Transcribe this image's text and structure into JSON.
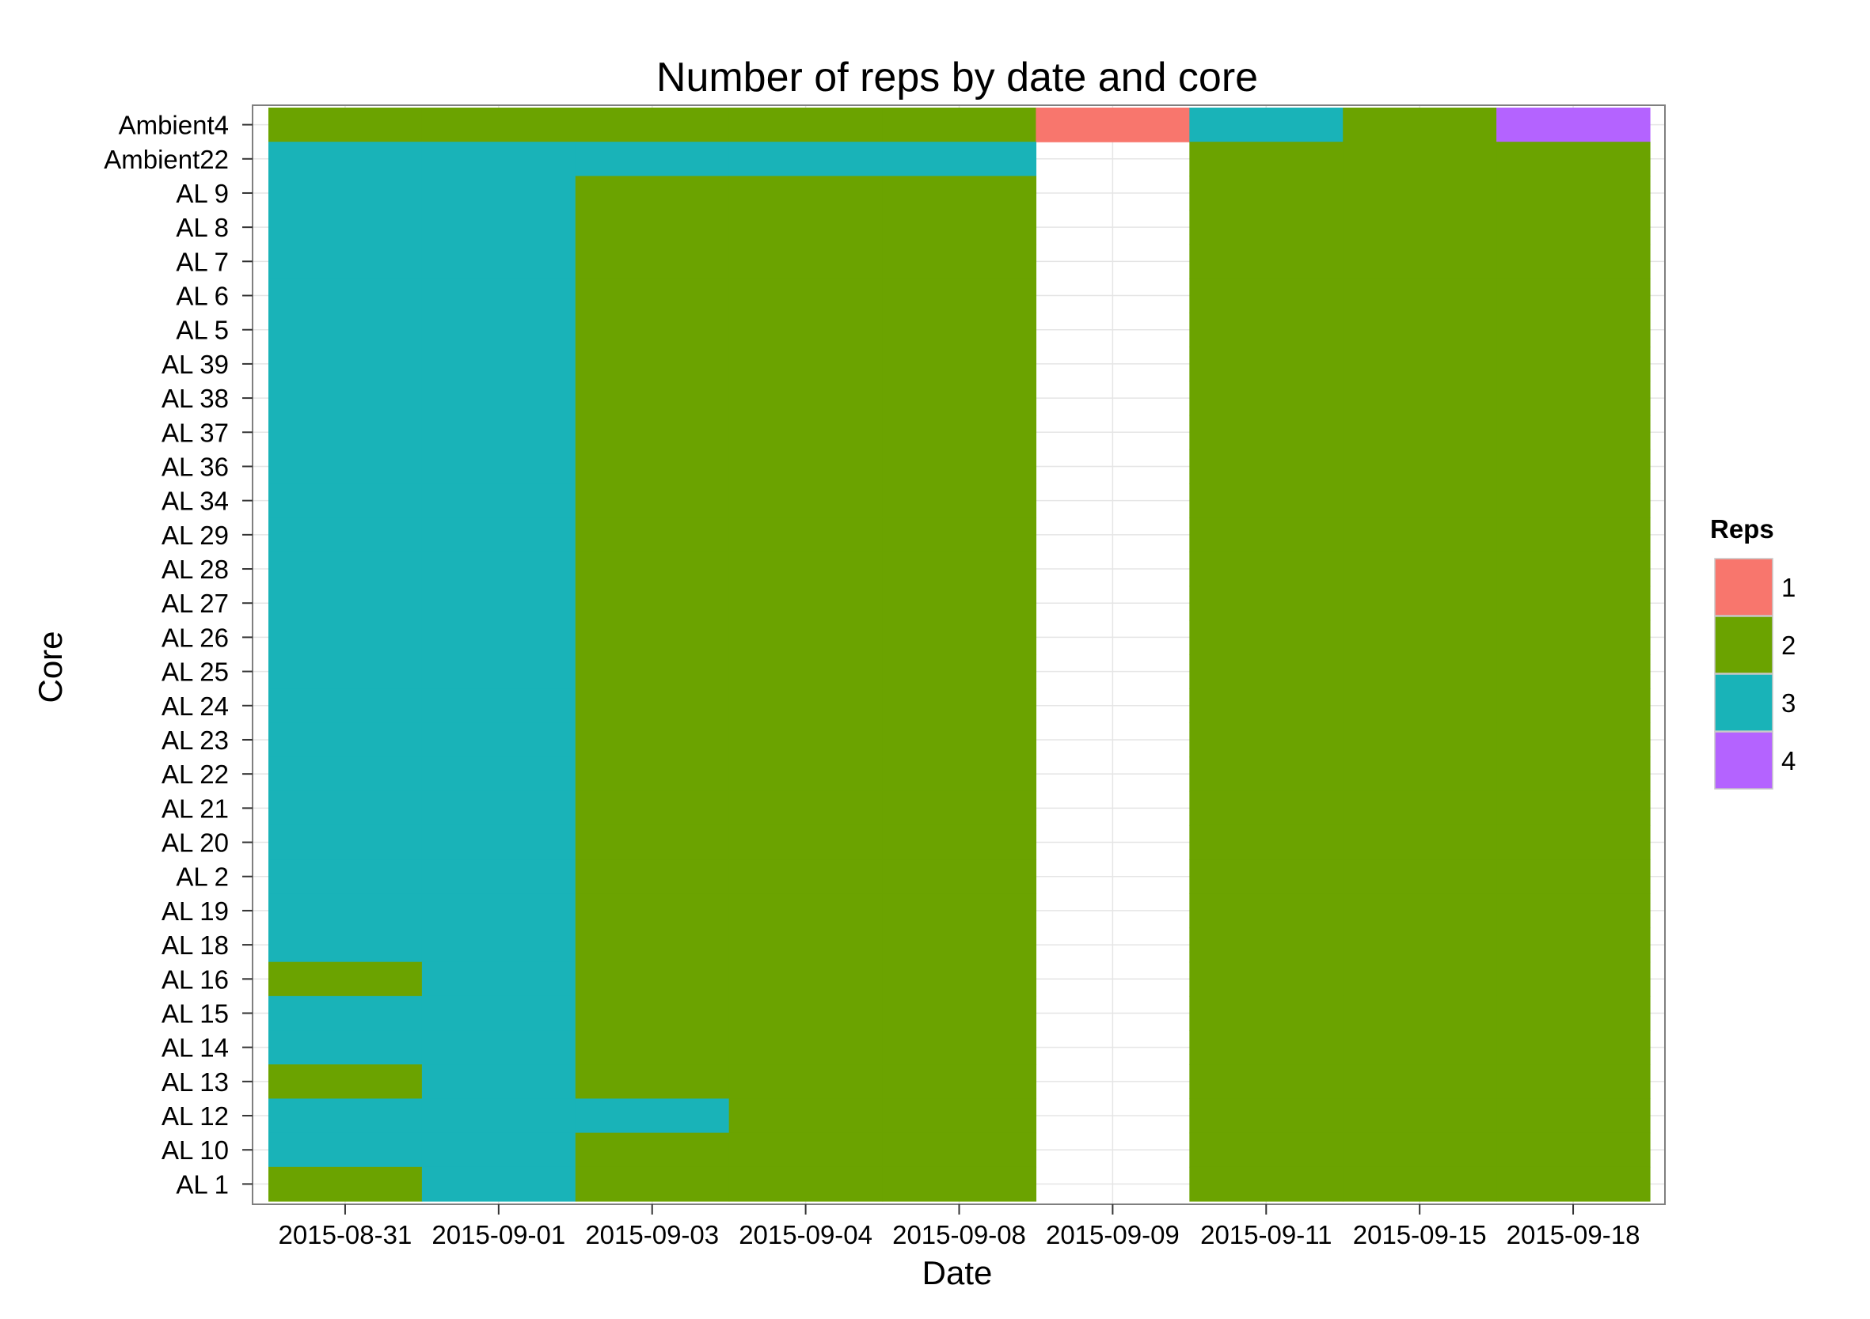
{
  "chart_data": {
    "type": "heatmap",
    "title": "Number of reps by date and core",
    "xlabel": "Date",
    "ylabel": "Core",
    "grid": true,
    "legend_placement": "right",
    "x": [
      "2015-08-31",
      "2015-09-01",
      "2015-09-03",
      "2015-09-04",
      "2015-09-08",
      "2015-09-09",
      "2015-09-11",
      "2015-09-15",
      "2015-09-18"
    ],
    "y": [
      "Ambient4",
      "Ambient22",
      "AL 9",
      "AL 8",
      "AL 7",
      "AL 6",
      "AL 5",
      "AL 39",
      "AL 38",
      "AL 37",
      "AL 36",
      "AL 34",
      "AL 29",
      "AL 28",
      "AL 27",
      "AL 26",
      "AL 25",
      "AL 24",
      "AL 23",
      "AL 22",
      "AL 21",
      "AL 20",
      "AL 2",
      "AL 19",
      "AL 18",
      "AL 16",
      "AL 15",
      "AL 14",
      "AL 13",
      "AL 12",
      "AL 10",
      "AL 1"
    ],
    "values": [
      [
        2,
        2,
        2,
        2,
        2,
        1,
        3,
        2,
        4
      ],
      [
        3,
        3,
        3,
        3,
        3,
        null,
        2,
        2,
        2
      ],
      [
        3,
        3,
        2,
        2,
        2,
        null,
        2,
        2,
        2
      ],
      [
        3,
        3,
        2,
        2,
        2,
        null,
        2,
        2,
        2
      ],
      [
        3,
        3,
        2,
        2,
        2,
        null,
        2,
        2,
        2
      ],
      [
        3,
        3,
        2,
        2,
        2,
        null,
        2,
        2,
        2
      ],
      [
        3,
        3,
        2,
        2,
        2,
        null,
        2,
        2,
        2
      ],
      [
        3,
        3,
        2,
        2,
        2,
        null,
        2,
        2,
        2
      ],
      [
        3,
        3,
        2,
        2,
        2,
        null,
        2,
        2,
        2
      ],
      [
        3,
        3,
        2,
        2,
        2,
        null,
        2,
        2,
        2
      ],
      [
        3,
        3,
        2,
        2,
        2,
        null,
        2,
        2,
        2
      ],
      [
        3,
        3,
        2,
        2,
        2,
        null,
        2,
        2,
        2
      ],
      [
        3,
        3,
        2,
        2,
        2,
        null,
        2,
        2,
        2
      ],
      [
        3,
        3,
        2,
        2,
        2,
        null,
        2,
        2,
        2
      ],
      [
        3,
        3,
        2,
        2,
        2,
        null,
        2,
        2,
        2
      ],
      [
        3,
        3,
        2,
        2,
        2,
        null,
        2,
        2,
        2
      ],
      [
        3,
        3,
        2,
        2,
        2,
        null,
        2,
        2,
        2
      ],
      [
        3,
        3,
        2,
        2,
        2,
        null,
        2,
        2,
        2
      ],
      [
        3,
        3,
        2,
        2,
        2,
        null,
        2,
        2,
        2
      ],
      [
        3,
        3,
        2,
        2,
        2,
        null,
        2,
        2,
        2
      ],
      [
        3,
        3,
        2,
        2,
        2,
        null,
        2,
        2,
        2
      ],
      [
        3,
        3,
        2,
        2,
        2,
        null,
        2,
        2,
        2
      ],
      [
        3,
        3,
        2,
        2,
        2,
        null,
        2,
        2,
        2
      ],
      [
        3,
        3,
        2,
        2,
        2,
        null,
        2,
        2,
        2
      ],
      [
        3,
        3,
        2,
        2,
        2,
        null,
        2,
        2,
        2
      ],
      [
        2,
        3,
        2,
        2,
        2,
        null,
        2,
        2,
        2
      ],
      [
        3,
        3,
        2,
        2,
        2,
        null,
        2,
        2,
        2
      ],
      [
        3,
        3,
        2,
        2,
        2,
        null,
        2,
        2,
        2
      ],
      [
        2,
        3,
        2,
        2,
        2,
        null,
        2,
        2,
        2
      ],
      [
        3,
        3,
        3,
        2,
        2,
        null,
        2,
        2,
        2
      ],
      [
        3,
        3,
        2,
        2,
        2,
        null,
        2,
        2,
        2
      ],
      [
        2,
        3,
        2,
        2,
        2,
        null,
        2,
        2,
        2
      ]
    ],
    "legend": {
      "title": "Reps",
      "entries": [
        {
          "label": "1",
          "value": 1,
          "color": "#F8766D"
        },
        {
          "label": "2",
          "value": 2,
          "color": "#6BA300"
        },
        {
          "label": "3",
          "value": 3,
          "color": "#19B3B8"
        },
        {
          "label": "4",
          "value": 4,
          "color": "#B463FF"
        }
      ]
    }
  }
}
